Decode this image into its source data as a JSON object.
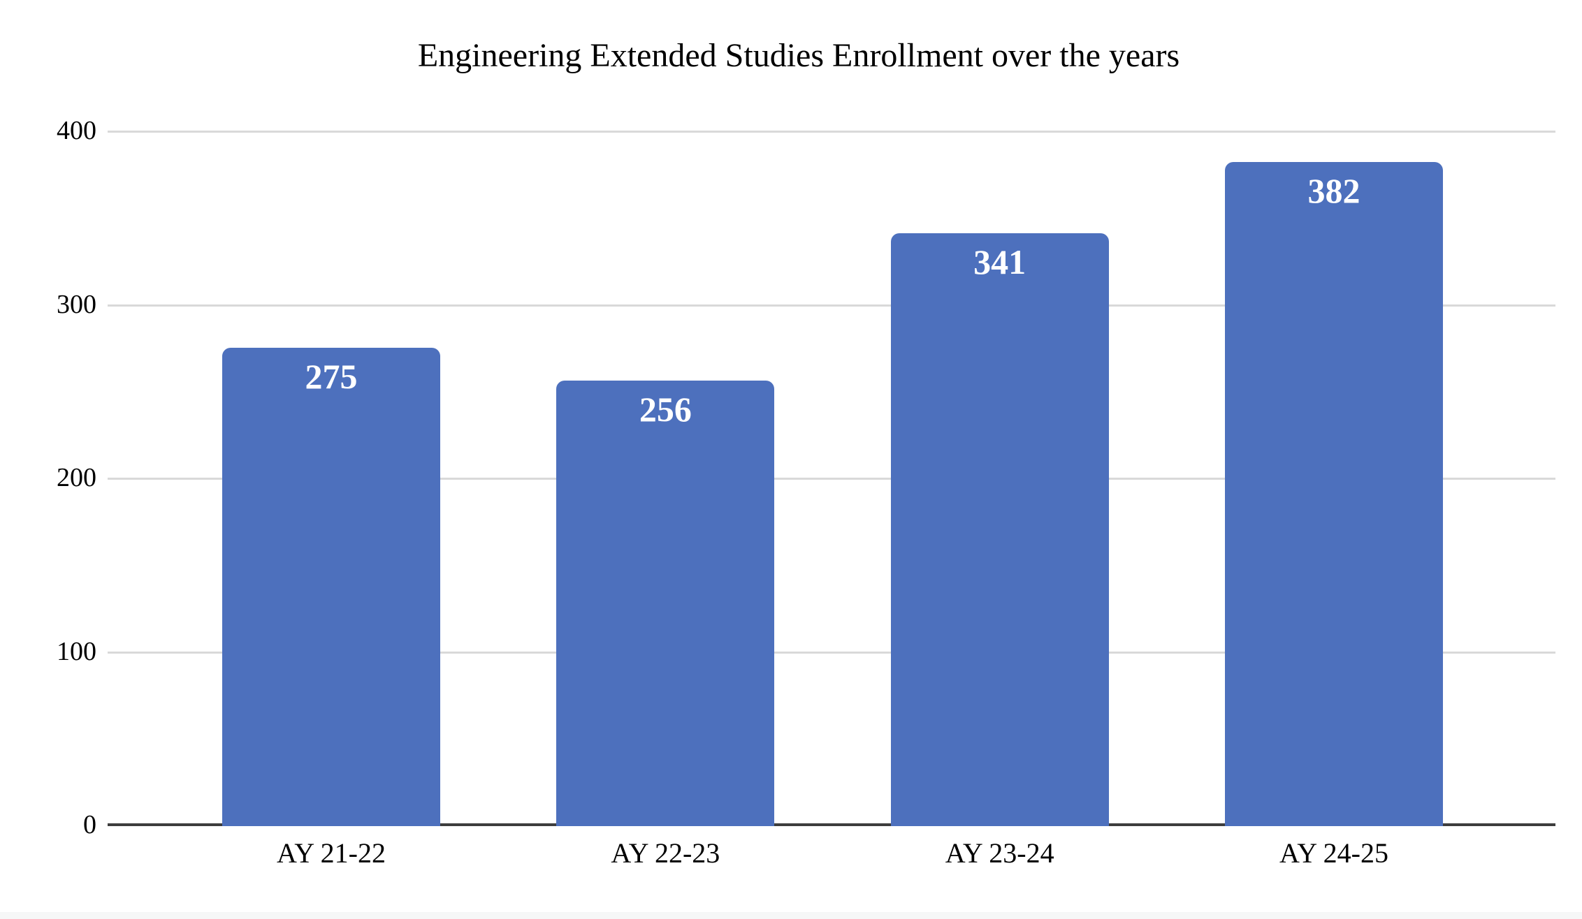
{
  "chart_data": {
    "type": "bar",
    "title": "Engineering Extended Studies Enrollment over the years",
    "categories": [
      "AY 21-22",
      "AY 22-23",
      "AY 23-24",
      "AY 24-25"
    ],
    "values": [
      275,
      256,
      341,
      382
    ],
    "value_labels": [
      "275",
      "256",
      "341",
      "382"
    ],
    "xlabel": "",
    "ylabel": "",
    "y_ticks": [
      0,
      100,
      200,
      300,
      400
    ],
    "ylim": [
      0,
      400
    ],
    "grid": true,
    "legend": "none",
    "bar_color": "#4d70bd",
    "value_label_color": "#ffffff",
    "gridline_color": "#d9d9d9",
    "axis_line_color": "#3d3d3d",
    "text_color": "#000000"
  }
}
